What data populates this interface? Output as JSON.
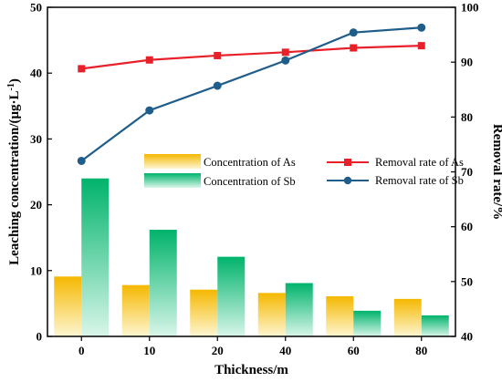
{
  "chart_data": {
    "type": "bar",
    "categories": [
      "0",
      "10",
      "20",
      "40",
      "60",
      "80"
    ],
    "xlabel": "Thickness/m",
    "ylabel_left": "Leaching concentration/(μg·L",
    "ylabel_left_sup": "-1",
    "ylabel_left_end": ")",
    "ylabel_right": "Removal rate/%",
    "ylim_left": [
      0,
      50
    ],
    "ylim_right": [
      40,
      100
    ],
    "yticks_left": [
      0,
      10,
      20,
      30,
      40,
      50
    ],
    "yticks_right": [
      40,
      50,
      60,
      70,
      80,
      90,
      100
    ],
    "bar_series": [
      {
        "name": "Concentration of As",
        "values": [
          9.1,
          7.8,
          7.1,
          6.6,
          6.1,
          5.7
        ],
        "color_top": "#f5b800",
        "color_bottom": "#fdf6d2"
      },
      {
        "name": "Concentration of Sb",
        "values": [
          24.0,
          16.2,
          12.1,
          8.1,
          3.9,
          3.2
        ],
        "color_top": "#00b36b",
        "color_bottom": "#d9f6ea"
      }
    ],
    "line_series": [
      {
        "name": "Removal rate of As",
        "values": [
          88.8,
          90.4,
          91.2,
          91.8,
          92.6,
          93.0
        ],
        "color": "#e8202a",
        "marker": "square"
      },
      {
        "name": "Removal rate of Sb",
        "values": [
          72.0,
          81.2,
          85.7,
          90.3,
          95.4,
          96.3
        ],
        "color": "#1f5e8a",
        "marker": "circle"
      }
    ],
    "grid": false,
    "legend_position": "center"
  }
}
